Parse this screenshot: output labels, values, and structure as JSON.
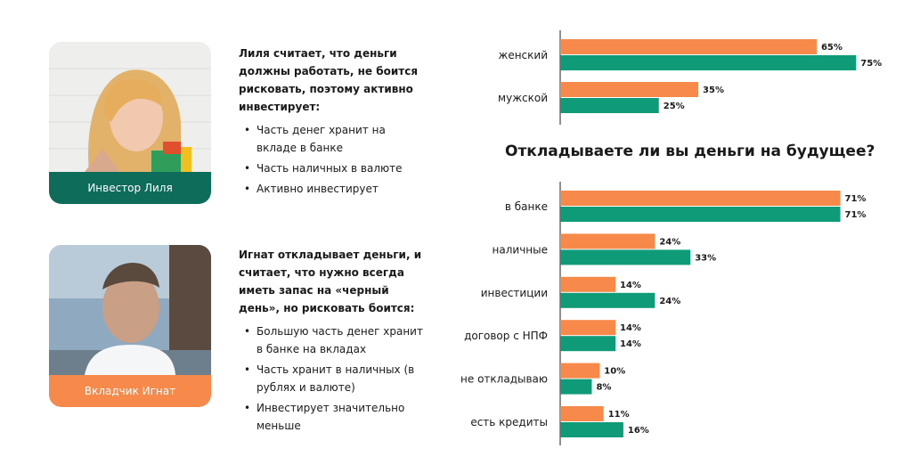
{
  "persona_lilya": {
    "caption": "Инвестор Лиля",
    "heading": "Лиля считает, что деньги должны работать, не боится рисковать, поэтому активно инвестирует:",
    "bullets": [
      "Часть денег хранит на вкладе в банке",
      "Часть наличных в валюте",
      "Активно инвестирует"
    ]
  },
  "persona_ignat": {
    "caption": "Вкладчик Игнат",
    "heading": "Игнат откладывает деньги, и считает, что нужно всегда иметь запас на «черный день», но рисковать боится:",
    "bullets": [
      "Большую часть денег хранит в банке на вкладах",
      "Часть хранит в наличных (в рублях и валюте)",
      "Инвестирует значительно меньше"
    ]
  },
  "colors": {
    "orange": "#f7894a",
    "green": "#109b78",
    "dark_green": "#0e6c5a"
  },
  "chart_data": [
    {
      "type": "bar",
      "orientation": "horizontal",
      "title": "",
      "categories": [
        "женский",
        "мужской"
      ],
      "series": [
        {
          "values": [
            65,
            35
          ],
          "color": "#f7894a"
        },
        {
          "values": [
            75,
            25
          ],
          "color": "#109b78"
        }
      ],
      "xlim": [
        0,
        100
      ],
      "value_suffix": "%",
      "grid": false
    },
    {
      "type": "bar",
      "orientation": "horizontal",
      "title": "Откладываете ли вы деньги на будущее?",
      "categories": [
        "в банке",
        "наличные",
        "инвестиции",
        "договор с НПФ",
        "не откладываю",
        "есть кредиты"
      ],
      "series": [
        {
          "values": [
            71,
            24,
            14,
            14,
            10,
            11
          ],
          "color": "#f7894a"
        },
        {
          "values": [
            71,
            33,
            24,
            14,
            8,
            16
          ],
          "color": "#109b78"
        }
      ],
      "xlim": [
        0,
        100
      ],
      "value_suffix": "%",
      "grid": false
    }
  ]
}
